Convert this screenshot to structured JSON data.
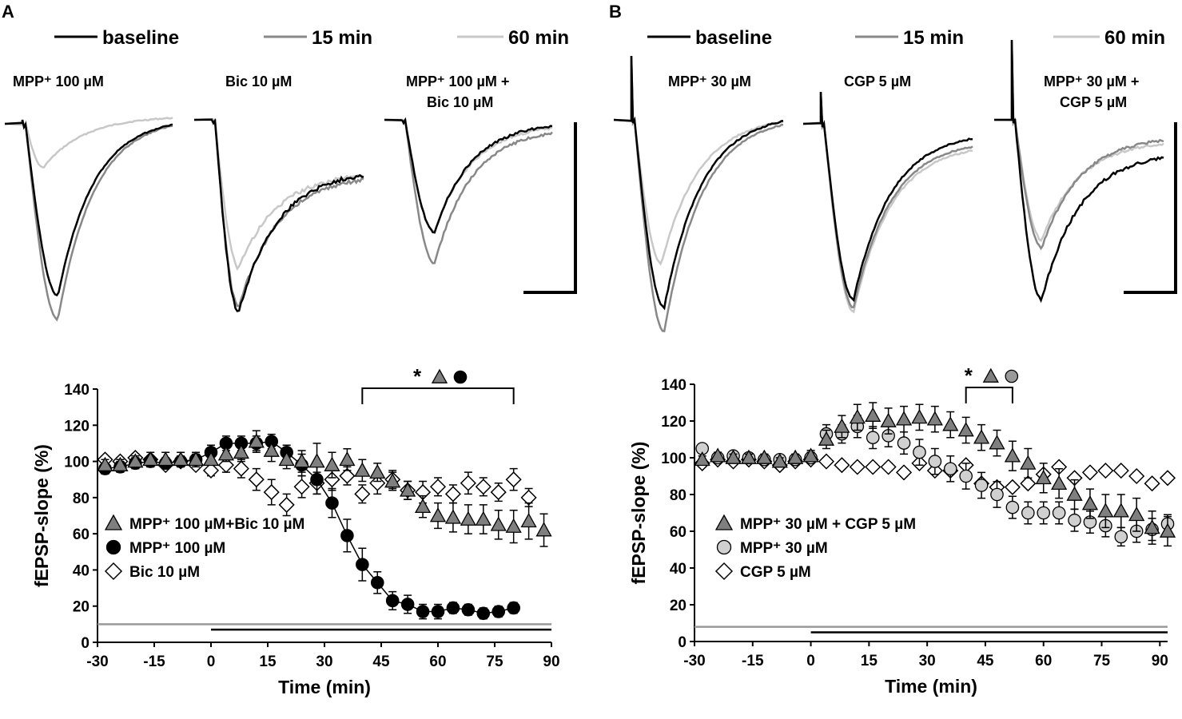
{
  "panels": [
    {
      "letter": "A",
      "legend": [
        {
          "label": "baseline",
          "color": "#000000"
        },
        {
          "label": "15 min",
          "color": "#888888"
        },
        {
          "label": "60 min",
          "color": "#c8c8c8"
        }
      ],
      "trace_titles": [
        [
          "MPP⁺ 100 µM"
        ],
        [
          "Bic  10 µM"
        ],
        [
          "MPP⁺ 100 µM +",
          "Bic 10 µM"
        ]
      ]
    },
    {
      "letter": "B",
      "legend": [
        {
          "label": "baseline",
          "color": "#000000"
        },
        {
          "label": "15 min",
          "color": "#888888"
        },
        {
          "label": "60 min",
          "color": "#c8c8c8"
        }
      ],
      "trace_titles": [
        [
          "MPP⁺ 30 µM"
        ],
        [
          "CGP 5 µM"
        ],
        [
          "MPP⁺ 30 µM +",
          "CGP 5 µM"
        ]
      ]
    }
  ],
  "chart_data": [
    {
      "type": "scatter",
      "panel": "A",
      "ylabel": "fEPSP-slope (%)",
      "xlabel": "Time (min)",
      "ylim": [
        0,
        140
      ],
      "xlim": [
        -30,
        90
      ],
      "yticks": [
        0,
        20,
        40,
        60,
        80,
        100,
        120,
        140
      ],
      "xticks": [
        -30,
        -15,
        0,
        15,
        30,
        45,
        60,
        75,
        90
      ],
      "significance_marker": "*",
      "significance_range": [
        40,
        80
      ],
      "application_bars": [
        {
          "color": "#999999",
          "x": [
            -30,
            90
          ],
          "y": 10
        },
        {
          "color": "#000000",
          "x": [
            0,
            90
          ],
          "y": 7
        }
      ],
      "series": [
        {
          "name": "MPP⁺ 100 µM+Bic 10 µM",
          "marker": "triangle",
          "fill": "#7f7f7f",
          "x": [
            -28,
            -24,
            -20,
            -16,
            -12,
            -8,
            -4,
            0,
            4,
            8,
            12,
            16,
            20,
            24,
            28,
            32,
            36,
            40,
            44,
            48,
            52,
            56,
            60,
            64,
            68,
            72,
            76,
            80,
            84,
            88
          ],
          "y": [
            98,
            98,
            100,
            101,
            101,
            101,
            101,
            101,
            104,
            105,
            111,
            106,
            101,
            100,
            100,
            98,
            101,
            95,
            94,
            89,
            84,
            75,
            70,
            69,
            68,
            68,
            65,
            64,
            67,
            62
          ],
          "err": [
            3,
            3,
            3,
            4,
            4,
            4,
            4,
            3,
            4,
            5,
            6,
            6,
            5,
            6,
            10,
            7,
            6,
            6,
            5,
            5,
            5,
            6,
            7,
            8,
            8,
            8,
            8,
            9,
            10,
            9
          ]
        },
        {
          "name": "MPP⁺ 100 µM",
          "marker": "circle",
          "fill": "#000000",
          "x": [
            -28,
            -24,
            -20,
            -16,
            -12,
            -8,
            -4,
            0,
            4,
            8,
            12,
            16,
            20,
            24,
            28,
            32,
            36,
            40,
            44,
            48,
            52,
            56,
            60,
            64,
            68,
            72,
            76,
            80
          ],
          "y": [
            96,
            97,
            99,
            100,
            99,
            100,
            101,
            105,
            110,
            110,
            110,
            111,
            105,
            98,
            90,
            77,
            59,
            43,
            33,
            23,
            21,
            17,
            17,
            19,
            18,
            16,
            17,
            19
          ],
          "err": [
            3,
            3,
            3,
            3,
            3,
            3,
            3,
            4,
            4,
            4,
            4,
            4,
            4,
            6,
            8,
            8,
            9,
            9,
            6,
            5,
            5,
            4,
            4,
            3,
            3,
            3,
            3,
            3
          ],
          "connected": true
        },
        {
          "name": "Bic  10 µM",
          "marker": "diamond",
          "fill": "#ffffff",
          "x": [
            -28,
            -24,
            -20,
            -16,
            -12,
            -8,
            -4,
            0,
            4,
            8,
            12,
            16,
            20,
            24,
            28,
            32,
            36,
            40,
            44,
            48,
            52,
            56,
            60,
            64,
            68,
            72,
            76,
            80,
            84
          ],
          "y": [
            101,
            100,
            102,
            101,
            98,
            100,
            98,
            95,
            98,
            96,
            90,
            83,
            76,
            86,
            88,
            90,
            92,
            82,
            88,
            90,
            84,
            83,
            86,
            82,
            88,
            86,
            83,
            90,
            80
          ],
          "err": [
            2,
            2,
            2,
            2,
            2,
            2,
            2,
            3,
            4,
            5,
            6,
            7,
            6,
            6,
            6,
            6,
            5,
            5,
            6,
            5,
            5,
            6,
            5,
            5,
            6,
            5,
            5,
            6,
            5
          ]
        }
      ]
    },
    {
      "type": "scatter",
      "panel": "B",
      "ylabel": "fEPSP-slope (%)",
      "xlabel": "Time (min)",
      "ylim": [
        0,
        140
      ],
      "xlim": [
        -30,
        92
      ],
      "yticks": [
        0,
        20,
        40,
        60,
        80,
        100,
        120,
        140
      ],
      "xticks": [
        -30,
        -15,
        0,
        15,
        30,
        45,
        60,
        75,
        90
      ],
      "significance_marker": "*",
      "significance_range": [
        40,
        52
      ],
      "application_bars": [
        {
          "color": "#999999",
          "x": [
            -30,
            92
          ],
          "y": 8
        },
        {
          "color": "#000000",
          "x": [
            0,
            92
          ],
          "y": 5
        }
      ],
      "series": [
        {
          "name": "MPP⁺ 30 µM + CGP 5 µM",
          "marker": "triangle",
          "fill": "#7f7f7f",
          "x": [
            -28,
            -24,
            -20,
            -16,
            -12,
            -8,
            -4,
            0,
            4,
            8,
            12,
            16,
            20,
            24,
            28,
            32,
            36,
            40,
            44,
            48,
            52,
            56,
            60,
            64,
            68,
            72,
            76,
            80,
            84,
            88,
            92
          ],
          "y": [
            99,
            101,
            100,
            100,
            100,
            98,
            100,
            101,
            110,
            117,
            122,
            123,
            120,
            121,
            122,
            121,
            118,
            115,
            111,
            108,
            101,
            97,
            89,
            86,
            80,
            75,
            71,
            71,
            69,
            62,
            60
          ],
          "err": [
            2,
            2,
            2,
            2,
            2,
            2,
            2,
            3,
            5,
            6,
            7,
            7,
            7,
            7,
            7,
            7,
            7,
            7,
            7,
            7,
            8,
            8,
            8,
            8,
            8,
            8,
            9,
            9,
            9,
            9,
            8
          ]
        },
        {
          "name": "MPP⁺ 30 µM",
          "marker": "circle",
          "fill": "#d0d0d0",
          "x": [
            -28,
            -24,
            -20,
            -16,
            -12,
            -8,
            -4,
            0,
            4,
            8,
            12,
            16,
            20,
            24,
            28,
            32,
            36,
            40,
            44,
            48,
            52,
            56,
            60,
            64,
            68,
            72,
            76,
            80,
            84,
            88,
            92
          ],
          "y": [
            105,
            100,
            101,
            100,
            99,
            99,
            99,
            100,
            113,
            113,
            117,
            111,
            112,
            108,
            103,
            98,
            94,
            90,
            85,
            80,
            73,
            70,
            70,
            70,
            66,
            65,
            63,
            57,
            60,
            61,
            64
          ],
          "err": [
            2,
            2,
            2,
            2,
            2,
            2,
            2,
            3,
            5,
            5,
            6,
            6,
            6,
            6,
            7,
            7,
            7,
            7,
            7,
            7,
            6,
            6,
            6,
            6,
            6,
            6,
            6,
            5,
            6,
            6,
            5
          ]
        },
        {
          "name": "CGP 5 µM",
          "marker": "diamond",
          "fill": "#ffffff",
          "x": [
            -28,
            -24,
            -20,
            -16,
            -12,
            -8,
            -4,
            0,
            4,
            8,
            12,
            16,
            20,
            24,
            28,
            32,
            36,
            40,
            44,
            48,
            52,
            56,
            60,
            64,
            68,
            72,
            76,
            80,
            84,
            88,
            92
          ],
          "y": [
            97,
            99,
            98,
            99,
            98,
            96,
            98,
            99,
            98,
            96,
            95,
            95,
            95,
            92,
            97,
            93,
            93,
            96,
            86,
            84,
            84,
            86,
            91,
            95,
            89,
            92,
            93,
            93,
            90,
            86,
            89
          ],
          "err": [
            2,
            2,
            2,
            2,
            2,
            2,
            2,
            2,
            2,
            2,
            2,
            2,
            2,
            2,
            2,
            2,
            2,
            2,
            2,
            2,
            2,
            2,
            2,
            2,
            2,
            2,
            2,
            2,
            2,
            2,
            2
          ]
        }
      ]
    }
  ]
}
